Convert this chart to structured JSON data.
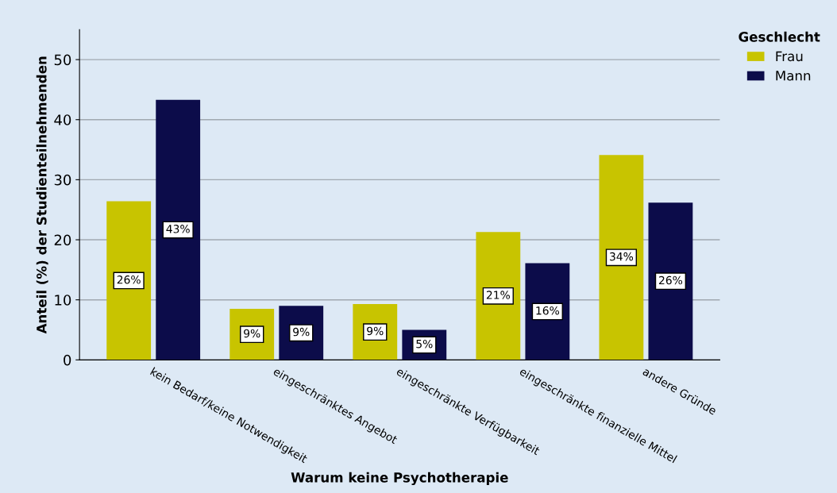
{
  "chart_data": {
    "type": "bar",
    "xlabel": "Warum keine Psychotherapie",
    "ylabel": "Anteil (%) der Studienteilnehmenden",
    "legend_title": "Geschlecht",
    "categories": [
      "kein Bedarf/keine Notwendigkeit",
      "eingeschränktes Angebot",
      "eingeschränkte Verfügbarkeit",
      "eingeschränkte finanzielle Mittel",
      "andere Gründe"
    ],
    "series": [
      {
        "name": "Frau",
        "color": "#c8c400",
        "values": [
          26.4,
          8.5,
          9.3,
          21.3,
          34.1
        ],
        "value_labels": [
          "26%",
          "9%",
          "9%",
          "21%",
          "34%"
        ]
      },
      {
        "name": "Mann",
        "color": "#0c0c4a",
        "values": [
          43.3,
          9.0,
          5.0,
          16.1,
          26.2
        ],
        "value_labels": [
          "43%",
          "9%",
          "5%",
          "16%",
          "26%"
        ]
      }
    ],
    "ylim": [
      0,
      55
    ],
    "yticks": [
      0,
      10,
      20,
      30,
      40,
      50
    ],
    "grid": "y",
    "legend": "top right"
  }
}
